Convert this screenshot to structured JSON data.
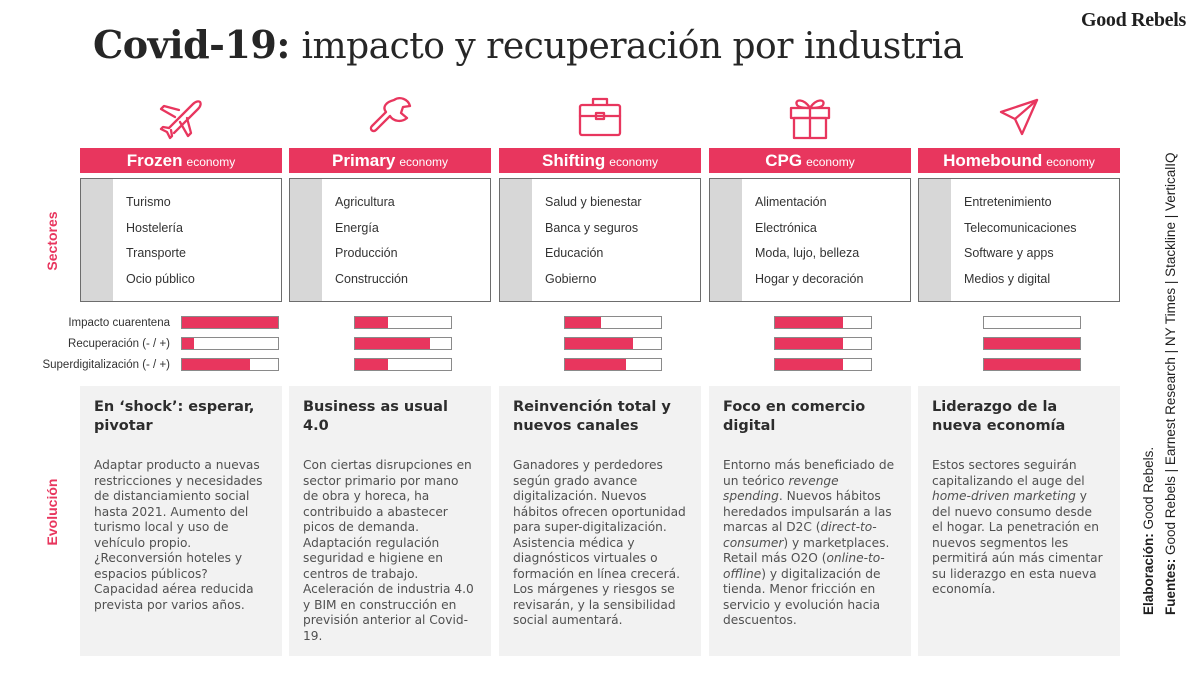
{
  "brand": "Good Rebels",
  "title": {
    "bold": "Covid-19:",
    "rest": "impacto y recuperación por industria"
  },
  "colors": {
    "accent": "#e8365e",
    "panel_gray": "#f2f2f2",
    "sidebar_gray": "#d7d7d7",
    "text": "#4a4a4a"
  },
  "row_labels": {
    "sectors": "Sectores",
    "evolution": "Evolución"
  },
  "metrics": [
    "Impacto cuarentena",
    "Recuperación (- / +)",
    "Superdigitalización (- / +)"
  ],
  "columns": [
    {
      "icon": "airplane-icon",
      "name": "Frozen",
      "economy": "economy",
      "sectors": [
        "Turismo",
        "Hostelería",
        "Transporte",
        "Ocio público"
      ],
      "levels": [
        1.0,
        0.13,
        0.71
      ],
      "headline": "En ‘shock’: esperar, pivotar",
      "text": "Adaptar producto a nuevas restricciones y necesidades de distanciamiento social hasta 2021. Aumento del turismo local y uso de vehículo propio. ¿Reconversión hoteles y espacios públicos? Capacidad aérea reducida prevista por varios años."
    },
    {
      "icon": "wrench-icon",
      "name": "Primary",
      "economy": "economy",
      "sectors": [
        "Agricultura",
        "Energía",
        "Producción",
        "Construcción"
      ],
      "levels": [
        0.34,
        0.78,
        0.34
      ],
      "headline": "Business as usual 4.0",
      "text": "Con ciertas disrupciones en sector primario por mano de obra y horeca, ha contribuido a abastecer picos de demanda. Adaptación regulación seguridad e higiene en centros de trabajo. Aceleración de industria 4.0 y BIM en construcción en previsión anterior al Covid-19."
    },
    {
      "icon": "briefcase-icon",
      "name": "Shifting",
      "economy": "economy",
      "sectors": [
        "Salud y bienestar",
        "Banca y seguros",
        "Educación",
        "Gobierno"
      ],
      "levels": [
        0.38,
        0.71,
        0.64
      ],
      "headline": "Reinvención total y nuevos canales",
      "text": "Ganadores y perdedores según grado avance digitalización. Nuevos hábitos ofrecen oportunidad para super-digitalización. Asistencia médica y diagnósticos virtuales o formación en línea crecerá. Los márgenes y riesgos se revisarán, y la sensibilidad social aumentará."
    },
    {
      "icon": "gift-icon",
      "name": "CPG",
      "economy": "economy",
      "sectors": [
        "Alimentación",
        "Electrónica",
        "Moda, lujo, belleza",
        "Hogar y decoración"
      ],
      "levels": [
        0.71,
        0.71,
        0.71
      ],
      "headline": "Foco en comercio digital",
      "text_parts": [
        {
          "t": "Entorno  más beneficiado de un teórico ",
          "i": false
        },
        {
          "t": "revenge spending",
          "i": true
        },
        {
          "t": ". Nuevos hábitos heredados impulsarán a las marcas al D2C (",
          "i": false
        },
        {
          "t": "direct-to-consumer",
          "i": true
        },
        {
          "t": ") y marketplaces. Retail más O2O (",
          "i": false
        },
        {
          "t": "online-to-offline",
          "i": true
        },
        {
          "t": ") y digitalización de tienda. Menor fricción en servicio y evolución hacia descuentos.",
          "i": false
        }
      ]
    },
    {
      "icon": "paper-plane-icon",
      "name": "Homebound",
      "economy": "economy",
      "sectors": [
        "Entretenimiento",
        "Telecomunicaciones",
        "Software y apps",
        "Medios y digital"
      ],
      "levels": [
        0.0,
        1.0,
        1.0
      ],
      "headline": "Liderazgo de la nueva economía",
      "text_parts": [
        {
          "t": "Estos sectores seguirán capitalizando el auge del ",
          "i": false
        },
        {
          "t": "home-driven marketing",
          "i": true
        },
        {
          "t": " y del nuevo consumo desde el hogar. La penetración en nuevos segmentos les permitirá aún más cimentar su liderazgo en esta nueva economía.",
          "i": false
        }
      ]
    }
  ],
  "credits": {
    "elaboracion_label": "Elaboración:",
    "elaboracion": "Good Rebels.",
    "fuentes_label": "Fuentes:",
    "fuentes": "Good Rebels | Earnest Research | NY Times | Stackline | VerticalIQ"
  }
}
